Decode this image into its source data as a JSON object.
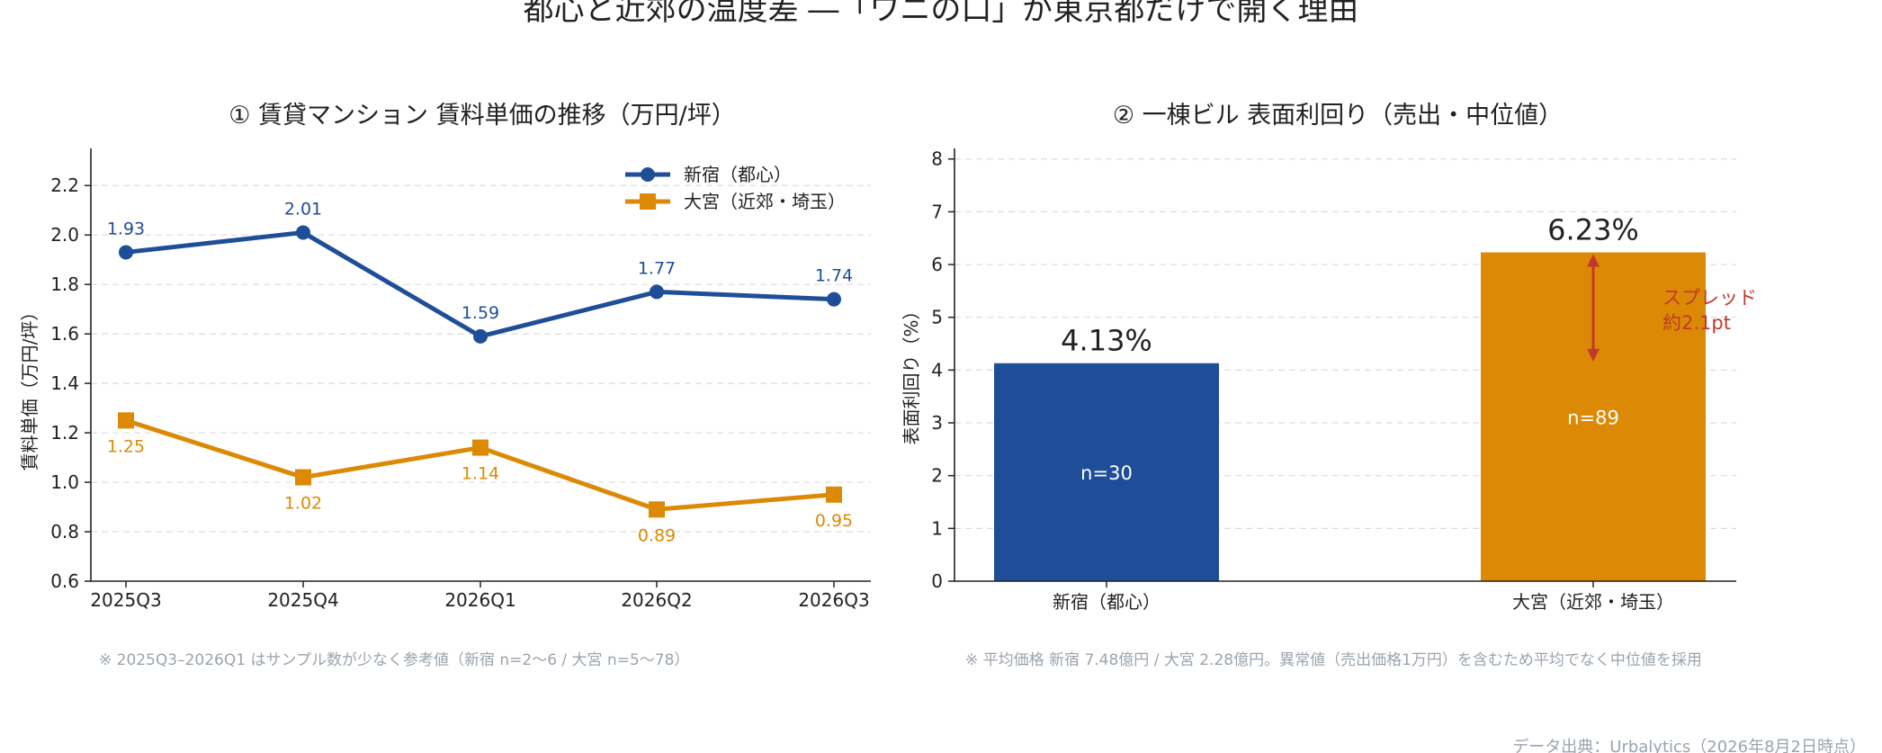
{
  "title": "都心と近郊の温度差 ―「ワニの口」が東京都だけで開く理由",
  "source": "データ出典：Urbalytics（2026年8月2日時点）",
  "colors": {
    "shinjuku": "#1f4e99",
    "omiya": "#dc8a05",
    "spread": "#c0392b"
  },
  "chart_data": [
    {
      "type": "line",
      "title": "① 賃貸マンション 賃料単価の推移（万円/坪）",
      "ylabel": "賃料単価（万円/坪）",
      "xlabel": "",
      "categories": [
        "2025Q3",
        "2025Q4",
        "2026Q1",
        "2026Q2",
        "2026Q3"
      ],
      "series": [
        {
          "name": "新宿（都心）",
          "marker": "circle",
          "values": [
            1.93,
            2.01,
            1.59,
            1.77,
            1.74
          ],
          "labels": [
            "1.93",
            "2.01",
            "1.59",
            "1.77",
            "1.74"
          ]
        },
        {
          "name": "大宮（近郊・埼玉）",
          "marker": "square",
          "values": [
            1.25,
            1.02,
            1.14,
            0.89,
            0.95
          ],
          "labels": [
            "1.25",
            "1.02",
            "1.14",
            "0.89",
            "0.95"
          ]
        }
      ],
      "ylim": [
        0.6,
        2.35
      ],
      "yticks": [
        "0.6",
        "0.8",
        "1.0",
        "1.2",
        "1.4",
        "1.6",
        "1.8",
        "2.0",
        "2.2"
      ],
      "grid": true,
      "legend": "top-right",
      "note": "※ 2025Q3–2026Q1 はサンプル数が少なく参考値（新宿 n=2〜6 / 大宮 n=5〜78）"
    },
    {
      "type": "bar",
      "title": "② 一棟ビル 表面利回り（売出・中位値）",
      "ylabel": "表面利回り（%）",
      "xlabel": "",
      "categories": [
        "新宿（都心）",
        "大宮（近郊・埼玉）"
      ],
      "values": [
        4.13,
        6.23
      ],
      "value_labels": [
        "4.13%",
        "6.23%"
      ],
      "counts": [
        "n=30",
        "n=89"
      ],
      "ylim": [
        0,
        8.2
      ],
      "yticks": [
        "0",
        "1",
        "2",
        "3",
        "4",
        "5",
        "6",
        "7",
        "8"
      ],
      "grid": true,
      "annotation": {
        "line1": "スプレッド",
        "line2": "約2.1pt"
      },
      "note": "※ 平均価格 新宿 7.48億円 / 大宮 2.28億円。異常値（売出価格1万円）を含むため平均でなく中位値を採用"
    }
  ]
}
